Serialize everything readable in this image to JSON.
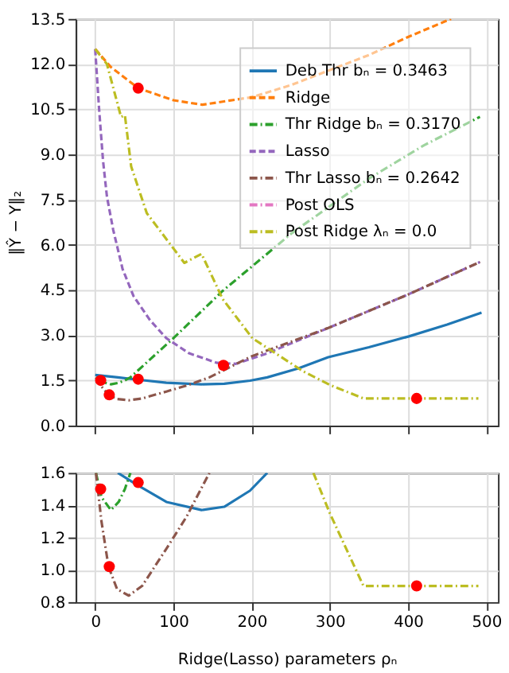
{
  "chart_data": [
    {
      "type": "line",
      "ylabel": "‖Ŷ − Y‖₂",
      "xlim": [
        -25,
        515
      ],
      "xticks": [
        0,
        100,
        200,
        300,
        400,
        500
      ],
      "ylim": [
        0,
        13.5
      ],
      "yticks": [
        {
          "value": 0,
          "label": "0.0"
        },
        1.5,
        {
          "value": 3,
          "label": "3.0"
        },
        4.5,
        {
          "value": 6,
          "label": "6.0"
        },
        7.5,
        {
          "value": 9,
          "label": "9.0"
        },
        10.5,
        {
          "value": 12,
          "label": "12.0"
        },
        13.5
      ],
      "grid": true,
      "legend": "top right",
      "tick_labels": "y",
      "series": [
        {
          "name": "Deb Thr bₙ = 0.3463",
          "color": "#1f77b4",
          "line_style": "solid",
          "x": [
            0,
            29,
            52,
            91,
            136,
            165,
            198,
            220,
            260,
            298,
            350,
            401,
            450,
            494
          ],
          "values": [
            1.68,
            1.6,
            1.53,
            1.42,
            1.37,
            1.39,
            1.49,
            1.6,
            1.9,
            2.27,
            2.6,
            2.96,
            3.35,
            3.75
          ]
        },
        {
          "name": "Ridge",
          "color": "#ff7f0e",
          "line_style": "dashed",
          "x": [
            0,
            20,
            55,
            100,
            137,
            200,
            250,
            300,
            350,
            400,
            455
          ],
          "values": [
            12.5,
            11.9,
            11.2,
            10.8,
            10.65,
            10.9,
            11.3,
            11.8,
            12.3,
            12.9,
            13.5
          ]
        },
        {
          "name": "Thr Ridge bₙ = 0.3170",
          "color": "#2ca02c",
          "line_style": "dashdot",
          "x": [
            1,
            8,
            20,
            30,
            38,
            45,
            100,
            163,
            252,
            350,
            420,
            492
          ],
          "values": [
            1.6,
            1.45,
            1.37,
            1.42,
            1.5,
            1.6,
            2.9,
            4.47,
            6.4,
            8.2,
            9.3,
            10.25
          ]
        },
        {
          "name": "Lasso",
          "color": "#9467bd",
          "line_style": "dashed",
          "x": [
            0,
            5,
            10,
            15,
            23,
            35,
            49,
            70,
            91,
            120,
            156,
            180,
            220,
            298,
            400,
            492
          ],
          "values": [
            12.5,
            10.5,
            8.8,
            7.6,
            6.5,
            5.2,
            4.3,
            3.5,
            2.9,
            2.4,
            2.08,
            2.05,
            2.4,
            3.24,
            4.35,
            5.43
          ]
        },
        {
          "name": "Thr Lasso bₙ = 0.2642",
          "color": "#8c564b",
          "line_style": "dashdot",
          "x": [
            1,
            8,
            17,
            28,
            43,
            60,
            91,
            117,
            146,
            200,
            298,
            400,
            492
          ],
          "values": [
            1.6,
            1.3,
            1.02,
            0.88,
            0.84,
            0.9,
            1.13,
            1.33,
            1.6,
            2.3,
            3.24,
            4.35,
            5.43
          ]
        },
        {
          "name": "Post OLS",
          "color": "#e377c2",
          "line_style": "dashdot"
        },
        {
          "name": "Post Ridge λₙ = 0.0",
          "color": "#bcbd22",
          "line_style": "dashdot",
          "x": [
            0,
            15,
            33,
            38,
            46,
            66,
            114,
            136,
            163,
            201,
            266,
            300,
            343,
            411,
            490
          ],
          "values": [
            12.5,
            12.0,
            10.25,
            10.3,
            8.6,
            7.05,
            5.4,
            5.7,
            4.2,
            2.9,
            1.8,
            1.35,
            0.9,
            0.9,
            0.9
          ]
        },
        {
          "type": "scatter",
          "color": "#ff0000",
          "marker": "circle",
          "x": [
            7,
            18,
            55,
            55,
            164,
            411
          ],
          "values": [
            1.5,
            1.02,
            1.54,
            11.2,
            2.0,
            0.9
          ]
        }
      ]
    },
    {
      "type": "line",
      "xlabel": "Ridge(Lasso) parameters ρₙ",
      "xlim": [
        -25,
        515
      ],
      "xticks": [
        0,
        100,
        200,
        300,
        400,
        500
      ],
      "ylim": [
        0.8,
        1.6
      ],
      "yticks": [
        0.8,
        {
          "value": 1,
          "label": "1.0"
        },
        1.2,
        1.4,
        1.6
      ],
      "grid": true,
      "legend": false,
      "series": [
        {
          "color": "#1f77b4",
          "line_style": "solid",
          "x": [
            29,
            52,
            91,
            136,
            165,
            198,
            220
          ],
          "values": [
            1.6,
            1.53,
            1.42,
            1.37,
            1.39,
            1.49,
            1.6
          ]
        },
        {
          "color": "#2ca02c",
          "line_style": "dashdot",
          "x": [
            1,
            8,
            20,
            30,
            38,
            45
          ],
          "values": [
            1.6,
            1.45,
            1.37,
            1.42,
            1.5,
            1.6
          ]
        },
        {
          "color": "#8c564b",
          "line_style": "dashdot",
          "x": [
            1,
            8,
            17,
            28,
            43,
            60,
            91,
            117,
            146
          ],
          "values": [
            1.6,
            1.3,
            1.02,
            0.88,
            0.84,
            0.9,
            1.13,
            1.33,
            1.6
          ]
        },
        {
          "color": "#bcbd22",
          "line_style": "dashdot",
          "x": [
            279,
            300,
            343,
            411,
            490
          ],
          "values": [
            1.6,
            1.35,
            0.9,
            0.9,
            0.9
          ]
        },
        {
          "type": "scatter",
          "color": "#ff0000",
          "marker": "circle",
          "x": [
            7,
            18,
            55,
            411
          ],
          "values": [
            1.5,
            1.02,
            1.54,
            0.9
          ]
        }
      ]
    }
  ]
}
